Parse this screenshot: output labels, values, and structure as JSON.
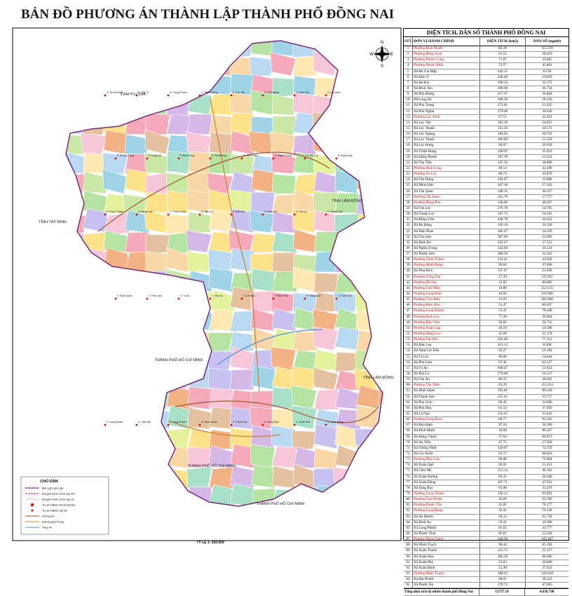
{
  "title": "BẢN ĐỒ PHƯƠNG ÁN THÀNH LẬP THÀNH PHỐ ĐỒNG NAI",
  "table": {
    "title": "DIỆN TÍCH, DÂN SỐ THÀNH PHỐ ĐỒNG NAI",
    "columns": [
      "STT",
      "ĐƠN VỊ HÀNH CHÍNH",
      "DIỆN TÍCH (km2)",
      "DÂN SỐ (người)"
    ],
    "rows": [
      {
        "stt": "1",
        "name": "Phường Bình Phước",
        "area": "86.39",
        "pop": "115.378",
        "color": "#c00000"
      },
      {
        "stt": "2",
        "name": "Phường Đồng Xoài",
        "area": "61.52",
        "pop": "38.419",
        "color": "#c00000"
      },
      {
        "stt": "3",
        "name": "Phường Phước Long",
        "area": "71.87",
        "pop": "33.065",
        "color": "#c00000"
      },
      {
        "stt": "4",
        "name": "Phường Phước Bình",
        "area": "72.57",
        "pop": "45.801",
        "color": "#c00000"
      },
      {
        "stt": "5",
        "name": "Xã Bù Gia Mập",
        "area": "242.51",
        "pop": "8.558"
      },
      {
        "stt": "6",
        "name": "Xã Đak Ơ",
        "area": "246.49",
        "pop": "19.858"
      },
      {
        "stt": "7",
        "name": "Xã Đa Kia",
        "area": "196.24",
        "pop": "32.173"
      },
      {
        "stt": "8",
        "name": "Xã Bình Tân",
        "area": "190.98",
        "pop": "26.734"
      },
      {
        "stt": "9",
        "name": "Xã Phú Riềng",
        "area": "117.37",
        "pop": "36.894"
      },
      {
        "stt": "10",
        "name": "Xã Long Hà",
        "area": "168.38",
        "pop": "28.156"
      },
      {
        "stt": "11",
        "name": "Xã Phú Trung",
        "area": "172.81",
        "pop": "13.935"
      },
      {
        "stt": "12",
        "name": "Xã Phú Nghĩa",
        "area": "279.48",
        "pop": "34.649"
      },
      {
        "stt": "13",
        "name": "Phường Lộc Ninh",
        "area": "67.51",
        "pop": "32.291",
        "color": "#c00000"
      },
      {
        "stt": "14",
        "name": "Xã Lộc Tấn",
        "area": "183.36",
        "pop": "24.015"
      },
      {
        "stt": "15",
        "name": "Xã Lộc Thạnh",
        "area": "125.50",
        "pop": "10.571"
      },
      {
        "stt": "16",
        "name": "Xã Lộc Quang",
        "area": "184.83",
        "pop": "20.732"
      },
      {
        "stt": "17",
        "name": "Xã Lộc Thành",
        "area": "206.09",
        "pop": "15.558"
      },
      {
        "stt": "18",
        "name": "Xã Lộc Hưng",
        "area": "96.97",
        "pop": "26.958"
      },
      {
        "stt": "19",
        "name": "Xã Thiện Hưng",
        "area": "130.97",
        "pop": "35.619"
      },
      {
        "stt": "20",
        "name": "Xã Hưng Phước",
        "area": "187.78",
        "pop": "13.214"
      },
      {
        "stt": "21",
        "name": "Xã Tân Tiến",
        "area": "147.56",
        "pop": "30.889"
      },
      {
        "stt": "22",
        "name": "Phường Bình Long",
        "area": "49.14",
        "pop": "41.398",
        "color": "#c00000"
      },
      {
        "stt": "23",
        "name": "Phường An Lộc",
        "area": "88.74",
        "pop": "35.879",
        "color": "#c00000"
      },
      {
        "stt": "24",
        "name": "Xã Tân Hưng",
        "area": "294.67",
        "pop": "35.888"
      },
      {
        "stt": "25",
        "name": "Xã Minh Đức",
        "area": "167.10",
        "pop": "17.343"
      },
      {
        "stt": "26",
        "name": "Xã Tân Quan",
        "area": "148.31",
        "pop": "30.357"
      },
      {
        "stt": "27",
        "name": "Phường Tân Khai",
        "area": "161.79",
        "pop": "27.777",
        "color": "#c00000"
      },
      {
        "stt": "28",
        "name": "Phường Đồng Phú",
        "area": "138.66",
        "pop": "49.297",
        "color": "#c00000"
      },
      {
        "stt": "29",
        "name": "Xã Tân Lợi",
        "area": "279.78",
        "pop": "14.795"
      },
      {
        "stt": "30",
        "name": "Xã Thuận Lợi",
        "area": "167.73",
        "pop": "24.101"
      },
      {
        "stt": "31",
        "name": "Xã Đồng Tâm",
        "area": "248.78",
        "pop": "36.351"
      },
      {
        "stt": "32",
        "name": "Xã Bù Đăng",
        "area": "156.14",
        "pop": "34.358"
      },
      {
        "stt": "33",
        "name": "Xã Đak Nhau",
        "area": "182.47",
        "pop": "24.329"
      },
      {
        "stt": "34",
        "name": "Xã Thọ Sơn",
        "area": "307.69",
        "pop": "21.962"
      },
      {
        "stt": "35",
        "name": "Xã Bom Bo",
        "area": "245.67",
        "pop": "27.552"
      },
      {
        "stt": "36",
        "name": "Xã Nghĩa Trung",
        "area": "222.04",
        "pop": "34.514"
      },
      {
        "stt": "37",
        "name": "Xã Phước Sơn",
        "area": "286.56",
        "pop": "31.262"
      },
      {
        "stt": "38",
        "name": "Phường Chơn Thành",
        "area": "124.41",
        "pop": "43.658",
        "color": "#c00000"
      },
      {
        "stt": "39",
        "name": "Phường Minh Hưng",
        "area": "99.66",
        "pop": "37.096",
        "color": "#c00000"
      },
      {
        "stt": "40",
        "name": "Xã Nha Bích",
        "area": "137.67",
        "pop": "23.938"
      },
      {
        "stt": "41",
        "name": "Phường Trảng Dài",
        "area": "27.29",
        "pop": "137.951",
        "color": "#c00000"
      },
      {
        "stt": "42",
        "name": "Phường Hố Nai",
        "area": "22.85",
        "pop": "86.085",
        "color": "#c00000"
      },
      {
        "stt": "43",
        "name": "Phường Tam Hiệp",
        "area": "10.80",
        "pop": "152.515",
        "color": "#c00000"
      },
      {
        "stt": "44",
        "name": "Phường Long Bình",
        "area": "44.92",
        "pop": "210.906",
        "color": "#c00000"
      },
      {
        "stt": "45",
        "name": "Phường Trấn Biên",
        "area": "31.03",
        "pop": "201.966",
        "color": "#c00000"
      },
      {
        "stt": "46",
        "name": "Phường Biên Hòa",
        "area": "21.47",
        "pop": "86.267",
        "color": "#c00000"
      },
      {
        "stt": "47",
        "name": "Phường Long Khánh",
        "area": "31.31",
        "pop": "79.448",
        "color": "#c00000"
      },
      {
        "stt": "48",
        "name": "Phường Bình Lộc",
        "area": "77.20",
        "pop": "36.964",
        "color": "#c00000"
      },
      {
        "stt": "49",
        "name": "Phường Bảo Vinh",
        "area": "50.85",
        "pop": "36.732",
        "color": "#c00000"
      },
      {
        "stt": "50",
        "name": "Phường Xuân Lập",
        "area": "29.19",
        "pop": "19.398",
        "color": "#c00000"
      },
      {
        "stt": "51",
        "name": "Phường Hàng Gòn",
        "area": "45.60",
        "pop": "25.178",
        "color": "#c00000"
      },
      {
        "stt": "52",
        "name": "Phường Tân Phú",
        "area": "105.80",
        "pop": "77.151",
        "color": "#c00000"
      },
      {
        "stt": "53",
        "name": "Xã Đak Lua",
        "area": "413.13",
        "pop": "8.308"
      },
      {
        "stt": "54",
        "name": "Xã Nam Cát Tiên",
        "area": "92.27",
        "pop": "16.194"
      },
      {
        "stt": "55",
        "name": "Xã Tà Lài",
        "area": "98.00",
        "pop": "14.644"
      },
      {
        "stt": "56",
        "name": "Xã Phú Lâm",
        "area": "67.36",
        "pop": "62.527"
      },
      {
        "stt": "57",
        "name": "Xã Trị An",
        "area": "640.47",
        "pop": "51.832"
      },
      {
        "stt": "58",
        "name": "Xã Phú Lý",
        "area": "279.60",
        "pop": "16.137"
      },
      {
        "stt": "59",
        "name": "Xã Tân An",
        "area": "80.25",
        "pop": "40.281"
      },
      {
        "stt": "60",
        "name": "Phường Tân Triều",
        "area": "63.29",
        "pop": "112.454",
        "color": "#c00000"
      },
      {
        "stt": "61",
        "name": "Xã Định Quán",
        "area": "295.82",
        "pop": "86.549"
      },
      {
        "stt": "62",
        "name": "Xã Thanh Sơn",
        "area": "315.41",
        "pop": "33.717"
      },
      {
        "stt": "63",
        "name": "Xã Phú Vinh",
        "area": "69.45",
        "pop": "31.660"
      },
      {
        "stt": "64",
        "name": "Xã Phú Hòa",
        "area": "61.54",
        "pop": "37.059"
      },
      {
        "stt": "65",
        "name": "Xã La Ngà",
        "area": "133.45",
        "pop": "33.442"
      },
      {
        "stt": "66",
        "name": "Phường Trảng Bom",
        "area": "68.77",
        "pop": "95.502",
        "color": "#c00000"
      },
      {
        "stt": "67",
        "name": "Xã Bàu Hàm",
        "area": "97.50",
        "pop": "56.208"
      },
      {
        "stt": "68",
        "name": "Xã Bình Minh",
        "area": "36.08",
        "pop": "86.267"
      },
      {
        "stt": "69",
        "name": "Xã Hưng Thịnh",
        "area": "57.64",
        "pop": "60.872"
      },
      {
        "stt": "70",
        "name": "Xã An Viễn",
        "area": "47.75",
        "pop": "27.958"
      },
      {
        "stt": "71",
        "name": "Xã Thống Nhất",
        "area": "120.07",
        "pop": "72.759"
      },
      {
        "stt": "72",
        "name": "Xã Gia Kiệm",
        "area": "92.72",
        "pop": "80.043"
      },
      {
        "stt": "73",
        "name": "Phường Dầu Giây",
        "area": "96.86",
        "pop": "72.004",
        "color": "#c00000"
      },
      {
        "stt": "74",
        "name": "Xã Xuân Quế",
        "area": "92.91",
        "pop": "21.431"
      },
      {
        "stt": "75",
        "name": "Xã Cẩm Mỹ",
        "area": "113.14",
        "pop": "46.103"
      },
      {
        "stt": "76",
        "name": "Xã Xuân Đường",
        "area": "82.11",
        "pop": "36.948"
      },
      {
        "stt": "77",
        "name": "Xã Xuân Đông",
        "area": "107.71",
        "pop": "47.652"
      },
      {
        "stt": "78",
        "name": "Xã Sông Ray",
        "area": "65.00",
        "pop": "31.478"
      },
      {
        "stt": "79",
        "name": "Phường Long Thành",
        "area": "130.12",
        "pop": "95.992",
        "color": "#c00000"
      },
      {
        "stt": "80",
        "name": "Phường Tam Phước",
        "area": "45.09",
        "pop": "61.760",
        "color": "#c00000"
      },
      {
        "stt": "81",
        "name": "Phường Phước Tân",
        "area": "42.85",
        "pop": "78.277",
        "color": "#c00000"
      },
      {
        "stt": "82",
        "name": "Phường Long Hưng",
        "area": "32.41",
        "pop": "76.128",
        "color": "#c00000"
      },
      {
        "stt": "83",
        "name": "Xã An Phước",
        "area": "58.32",
        "pop": "65.758"
      },
      {
        "stt": "84",
        "name": "Xã Bình An",
        "area": "59.41",
        "pop": "36.396"
      },
      {
        "stt": "85",
        "name": "Xã Long Phước",
        "area": "81.63",
        "pop": "43.777"
      },
      {
        "stt": "86",
        "name": "Xã Phước Thái",
        "area": "85.87",
        "pop": "55.230"
      },
      {
        "stt": "87",
        "name": "Phường Nhơn Trạch",
        "area": "140.50",
        "pop": "105.497",
        "color": "#c00000"
      },
      {
        "stt": "88",
        "name": "Xã Nhơn Trạch",
        "area": "96.44",
        "pop": "45.194"
      },
      {
        "stt": "89",
        "name": "Xã Xuân Thành",
        "area": "122.72",
        "pop": "22.127"
      },
      {
        "stt": "90",
        "name": "Xã Xuân Hòa",
        "area": "306.20",
        "pop": "80.480"
      },
      {
        "stt": "91",
        "name": "Xã Xuân Phú",
        "area": "55.63",
        "pop": "29.808"
      },
      {
        "stt": "92",
        "name": "Xã Xuân Định",
        "area": "52.30",
        "pop": "37.022"
      },
      {
        "stt": "93",
        "name": "Phường Minh Thạnh",
        "area": "188.05",
        "pop": "156.039",
        "color": "#c00000"
      },
      {
        "stt": "94",
        "name": "Xã Đại Phước",
        "area": "98.01",
        "pop": "30.123"
      },
      {
        "stt": "95",
        "name": "Xã Phước An",
        "area": "170.72",
        "pop": "47.605"
      }
    ],
    "total": {
      "label": "Tổng diện tích tự nhiên thành phố Đồng Nai",
      "area": "12737.18",
      "pop": "4.836.798"
    }
  },
  "map": {
    "regions": [
      "CAM PU CHIA",
      "TỈNH TÂY NINH",
      "TỈNH LÂM ĐỒNG",
      "TỈNH LÂM ĐỒNG",
      "THÀNH PHỐ HỒ CHÍ MINH",
      "THÀNH PHỐ HỒ CHÍ MINH",
      "THÀNH PHỐ HỒ CHÍ MINH"
    ],
    "places": [
      "X. Bù Gia Mập",
      "X. Đak Ơ",
      "X. Hưng Phước",
      "X. Thiện Hưng",
      "X. Lộc Tấn",
      "X. Phú Nghĩa",
      "X. Bình Tân",
      "X. Lộc Ninh",
      "P. Phước Long",
      "X. Long Hà",
      "P. Bình Long",
      "X. Phú Riềng",
      "X. Minh Đức",
      "X. Nghĩa Trung",
      "X. Tân Lợi",
      "P. Đồng Xoài",
      "P. Chơn Thành",
      "X. Đồng Tâm",
      "X. Phước Sơn",
      "X. Tân Lợi",
      "X. Bom Bo",
      "X. Đak Lua",
      "X. Phú Lý",
      "X. Thanh Sơn",
      "X. Định Quán",
      "X. Phú Lâm",
      "X. Trị An",
      "X. Tân An",
      "X. La Ngà",
      "P. Biên Hòa",
      "P. Trảng Bom",
      "X. Xuân Lộc",
      "P. Long Khánh",
      "X. Cẩm Mỹ",
      "P. Long Thành",
      "X. Nhơn Trạch",
      "X. Phước An",
      "X. Sông Ray",
      "X. Xuân Hòa",
      "X. Xuân Đông"
    ],
    "compass": [
      "N",
      "E",
      "S",
      "W"
    ]
  },
  "legend": {
    "title": "CHÚ DẪN",
    "items": [
      "Biên giới quốc gia",
      "Địa giới hành chính cấp tỉnh",
      "Địa giới hành chính cấp xã",
      "Trụ sở UBND tỉnh Đồng Nai",
      "Trụ sở UBND cấp xã",
      "Đường bộ",
      "Đường giao thông",
      "Thủy hệ"
    ]
  },
  "scale": "TỶ LỆ 1: 350.000"
}
